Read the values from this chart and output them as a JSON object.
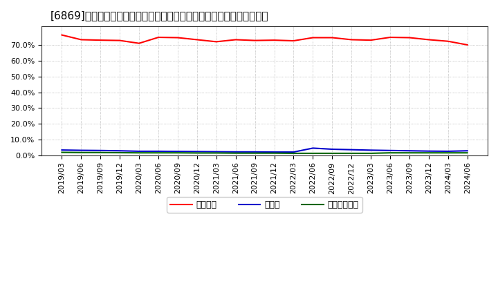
{
  "title": "[6869]　自己資本、のれん、繰延税金資産の総資産に対する比率の推移",
  "x_labels": [
    "2019/03",
    "2019/06",
    "2019/09",
    "2019/12",
    "2020/03",
    "2020/06",
    "2020/09",
    "2020/12",
    "2021/03",
    "2021/06",
    "2021/09",
    "2021/12",
    "2022/03",
    "2022/06",
    "2022/09",
    "2022/12",
    "2023/03",
    "2023/06",
    "2023/09",
    "2023/12",
    "2024/03",
    "2024/06"
  ],
  "jikoshihon": [
    76.5,
    73.5,
    73.2,
    73.0,
    71.2,
    75.0,
    74.8,
    73.5,
    72.2,
    73.5,
    73.0,
    73.2,
    72.8,
    74.8,
    74.8,
    73.5,
    73.2,
    75.0,
    74.8,
    73.5,
    72.5,
    70.2
  ],
  "noren": [
    3.3,
    3.1,
    3.0,
    2.8,
    2.5,
    2.5,
    2.4,
    2.3,
    2.2,
    2.1,
    2.1,
    2.0,
    2.0,
    4.5,
    3.8,
    3.5,
    3.2,
    3.0,
    2.8,
    2.6,
    2.5,
    2.8
  ],
  "kurinobe": [
    1.8,
    1.7,
    1.7,
    1.6,
    1.5,
    1.5,
    1.5,
    1.4,
    1.4,
    1.3,
    1.3,
    1.3,
    1.2,
    1.2,
    1.2,
    1.2,
    1.2,
    1.5,
    1.5,
    1.5,
    1.5,
    1.5
  ],
  "line_colors": {
    "jikoshihon": "#ff0000",
    "noren": "#0000cc",
    "kurinobe": "#006600"
  },
  "legend_labels": {
    "jikoshihon": "自己資本",
    "noren": "のれん",
    "kurinobe": "繰延税金資産"
  },
  "bg_color": "#ffffff",
  "plot_bg_color": "#ffffff",
  "grid_color": "#999999",
  "ylim": [
    0,
    82
  ],
  "yticks": [
    0,
    10,
    20,
    30,
    40,
    50,
    60,
    70
  ],
  "ytick_labels": [
    "0.0%",
    "10.0%",
    "20.0%",
    "30.0%",
    "40.0%",
    "50.0%",
    "60.0%",
    "70.0%"
  ],
  "title_fontsize": 11,
  "tick_fontsize": 8,
  "legend_fontsize": 9,
  "line_width": 1.5
}
